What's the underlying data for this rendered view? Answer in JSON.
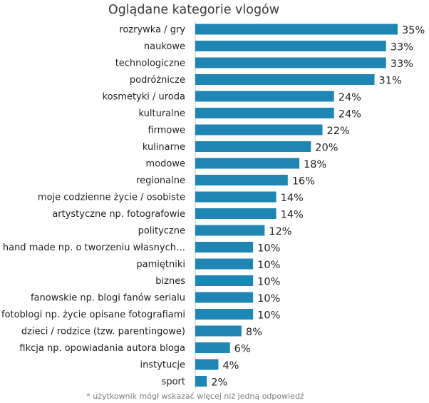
{
  "chart_data": {
    "type": "bar",
    "orientation": "horizontal",
    "title": "Oglądane kategorie vlogów",
    "categories": [
      "rozrywka / gry",
      "naukowe",
      "technologiczne",
      "podróżnicze",
      "kosmetyki / uroda",
      "kulturalne",
      "firmowe",
      "kulinarne",
      "modowe",
      "regionalne",
      "moje codzienne życie / osobiste",
      "artystyczne np. fotografowie",
      "polityczne",
      "hand made np. o tworzeniu własnych…",
      "pamiętniki",
      "biznes",
      "fanowskie np. blogi fanów serialu",
      "fotoblogi np. życie opisane fotografiami",
      "dzieci / rodzice (tzw. parentingowe)",
      "fikcja np. opowiadania autora bloga",
      "instytucje",
      "sport"
    ],
    "values": [
      35,
      33,
      33,
      31,
      24,
      24,
      22,
      20,
      18,
      16,
      14,
      14,
      12,
      10,
      10,
      10,
      10,
      10,
      8,
      6,
      4,
      2
    ],
    "value_labels": [
      "35%",
      "33%",
      "33%",
      "31%",
      "24%",
      "24%",
      "22%",
      "20%",
      "18%",
      "16%",
      "14%",
      "14%",
      "12%",
      "10%",
      "10%",
      "10%",
      "10%",
      "10%",
      "8%",
      "6%",
      "4%",
      "2%"
    ],
    "unit": "%",
    "xlim": [
      0,
      35
    ],
    "grid": false,
    "legend": "none",
    "bar_color": "#1f85b3",
    "footnote": "* użytkownik mógł wskazać więcej niż jedną odpowiedź"
  }
}
